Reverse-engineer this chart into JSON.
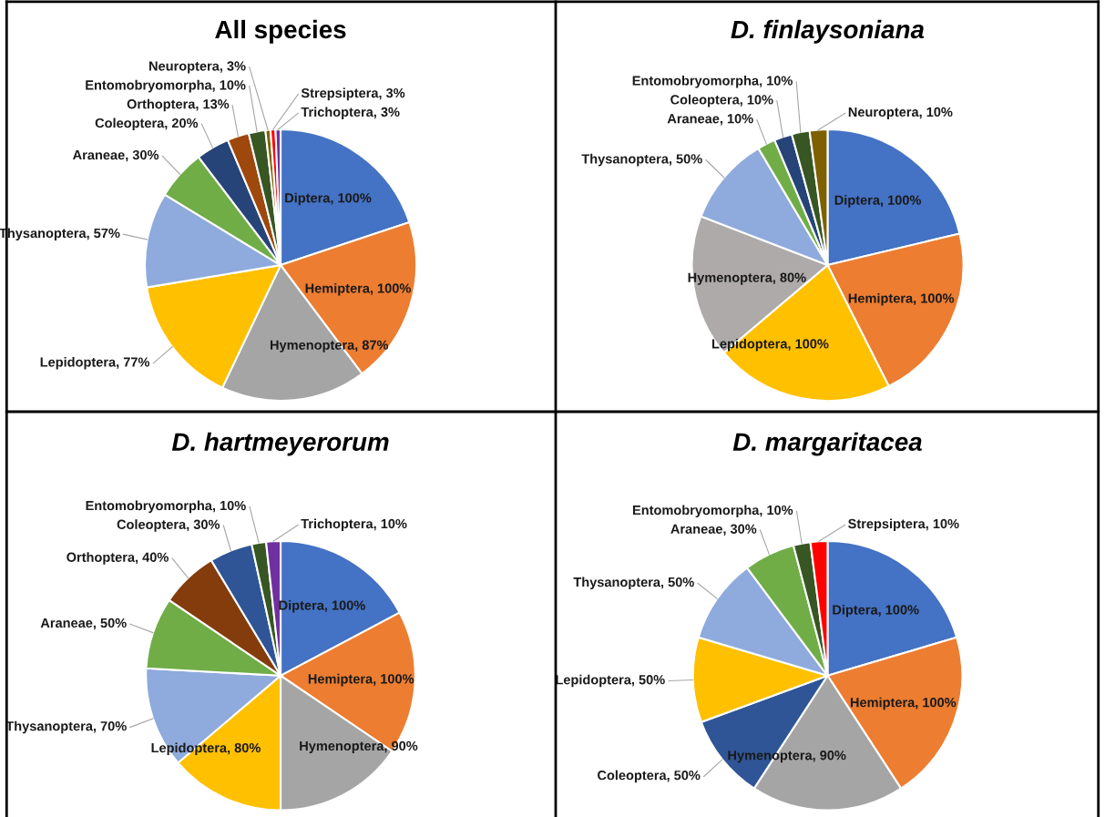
{
  "chart_data": [
    {
      "type": "pie",
      "title": "All species",
      "categories": [
        "Diptera",
        "Hemiptera",
        "Hymenoptera",
        "Lepidoptera",
        "Thysanoptera",
        "Araneae",
        "Coleoptera",
        "Orthoptera",
        "Entomobryomorpha",
        "Neuroptera",
        "Strepsiptera",
        "Trichoptera"
      ],
      "values": [
        100,
        100,
        87,
        77,
        57,
        30,
        20,
        13,
        10,
        3,
        3,
        3
      ],
      "value_labels": [
        ", 100%",
        ", 100%",
        ", 87%",
        ", 77%",
        ", 57%",
        ", 30%",
        ", 20%",
        ", 13%",
        ", 10%",
        ", 3%",
        ", 3%",
        ", 3%"
      ],
      "colors": [
        "#4472c4",
        "#ed7d31",
        "#a5a5a5",
        "#ffc000",
        "#8faadc",
        "#70ad47",
        "#264478",
        "#9e480e",
        "#375623",
        "#7f6000",
        "#ff0000",
        "#7030a0"
      ]
    },
    {
      "type": "pie",
      "title": "D. finlaysoniana",
      "categories": [
        "Diptera",
        "Hemiptera",
        "Lepidoptera",
        "Hymenoptera",
        "Thysanoptera",
        "Araneae",
        "Coleoptera",
        "Entomobryomorpha",
        "Neuroptera"
      ],
      "values": [
        100,
        100,
        100,
        80,
        50,
        10,
        10,
        10,
        10
      ],
      "value_labels": [
        ", 100%",
        ", 100%",
        ", 100%",
        ", 80%",
        ", 50%",
        ", 10%",
        ", 10%",
        ", 10%",
        ", 10%"
      ],
      "colors": [
        "#4472c4",
        "#ed7d31",
        "#ffc000",
        "#aeaaaa",
        "#8faadc",
        "#70ad47",
        "#264478",
        "#375623",
        "#7f6000"
      ]
    },
    {
      "type": "pie",
      "title": "D. hartmeyerorum",
      "categories": [
        "Diptera",
        "Hemiptera",
        "Hymenoptera",
        "Lepidoptera",
        "Thysanoptera",
        "Araneae",
        "Orthoptera",
        "Coleoptera",
        "Entomobryomorpha",
        "Trichoptera"
      ],
      "values": [
        100,
        100,
        90,
        80,
        70,
        50,
        40,
        30,
        10,
        10
      ],
      "value_labels": [
        ", 100%",
        ", 100%",
        ", 90%",
        ", 80%",
        ", 70%",
        ", 50%",
        ", 40%",
        ", 30%",
        ", 10%",
        ", 10%"
      ],
      "colors": [
        "#4472c4",
        "#ed7d31",
        "#a5a5a5",
        "#ffc000",
        "#8faadc",
        "#70ad47",
        "#843c0c",
        "#2f5597",
        "#375623",
        "#7030a0"
      ]
    },
    {
      "type": "pie",
      "title": "D. margaritacea",
      "categories": [
        "Diptera",
        "Hemiptera",
        "Hymenoptera",
        "Coleoptera",
        "Lepidoptera",
        "Thysanoptera",
        "Araneae",
        "Entomobryomorpha",
        "Strepsiptera"
      ],
      "values": [
        100,
        100,
        90,
        50,
        50,
        50,
        30,
        10,
        10
      ],
      "value_labels": [
        ", 100%",
        ", 100%",
        ", 90%",
        ", 50%",
        ", 50%",
        ", 50%",
        ", 30%",
        ", 10%",
        ", 10%"
      ],
      "colors": [
        "#4472c4",
        "#ed7d31",
        "#a5a5a5",
        "#2f5597",
        "#ffc000",
        "#8faadc",
        "#70ad47",
        "#375623",
        "#ff0000"
      ]
    }
  ]
}
